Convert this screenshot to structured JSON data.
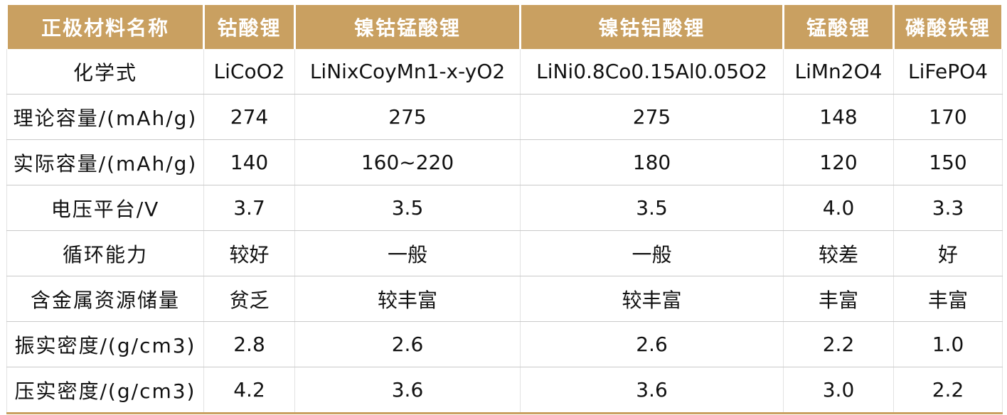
{
  "table": {
    "header": [
      "正极材料名称",
      "钴酸锂",
      "镍钴锰酸锂",
      "镍钴铝酸锂",
      "锰酸锂",
      "磷酸铁锂"
    ],
    "rows": [
      [
        "化学式",
        "LiCoO2",
        "LiNixCoyMn1-x-yO2",
        "LiNi0.8Co0.15Al0.05O2",
        "LiMn2O4",
        "LiFePO4"
      ],
      [
        "理论容量/(mAh/g)",
        "274",
        "275",
        "275",
        "148",
        "170"
      ],
      [
        "实际容量/(mAh/g)",
        "140",
        "160~220",
        "180",
        "120",
        "150"
      ],
      [
        "电压平台/V",
        "3.7",
        "3.5",
        "3.5",
        "4.0",
        "3.3"
      ],
      [
        "循环能力",
        "较好",
        "一般",
        "一般",
        "较差",
        "好"
      ],
      [
        "含金属资源储量",
        "贫乏",
        "较丰富",
        "较丰富",
        "丰富",
        "丰富"
      ],
      [
        "振实密度/(g/cm3)",
        "2.8",
        "2.6",
        "2.6",
        "2.2",
        "1.0"
      ],
      [
        "压实密度/(g/cm3)",
        "4.2",
        "3.6",
        "3.6",
        "3.0",
        "2.2"
      ]
    ]
  }
}
